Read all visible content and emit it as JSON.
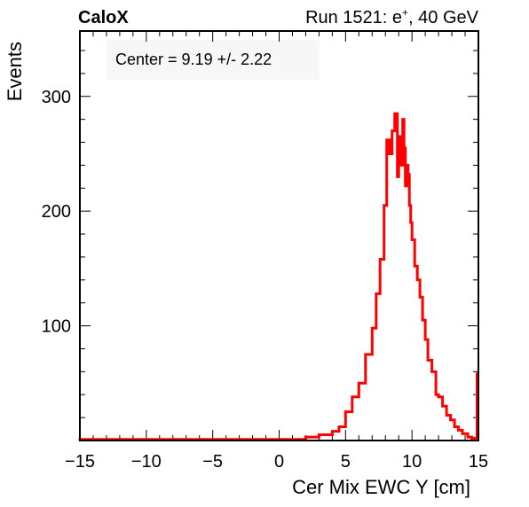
{
  "header": {
    "brand": "CaloX",
    "run_prefix": "Run 1521: e",
    "run_superscript": "+",
    "run_suffix": ", 40 GeV"
  },
  "annotation": "Center = 9.19 +/- 2.22",
  "colors": {
    "line": "#ff0000",
    "axis": "#000000",
    "background": "#ffffff",
    "annotation_box": "#f7f7f7"
  },
  "chart_data": {
    "type": "line",
    "drawstyle": "histogram-step",
    "xlabel": "Cer Mix EWC Y [cm]",
    "ylabel": "Events",
    "xlim": [
      -15,
      15
    ],
    "ylim": [
      0,
      357
    ],
    "x_ticks": [
      {
        "value": -15,
        "label": "−15"
      },
      {
        "value": -10,
        "label": "−10"
      },
      {
        "value": -5,
        "label": "−5"
      },
      {
        "value": 0,
        "label": "0"
      },
      {
        "value": 5,
        "label": "5"
      },
      {
        "value": 10,
        "label": "10"
      },
      {
        "value": 15,
        "label": "15"
      }
    ],
    "y_ticks": [
      {
        "value": 100,
        "label": "100"
      },
      {
        "value": 200,
        "label": "200"
      },
      {
        "value": 300,
        "label": "300"
      }
    ],
    "grid": false,
    "series": [
      {
        "color": "#ff0000",
        "bin_edges_x": [
          -15.0,
          2.0,
          3.0,
          4.0,
          4.5,
          5.0,
          5.5,
          6.0,
          6.5,
          7.0,
          7.3,
          7.6,
          7.9,
          8.1,
          8.3,
          8.5,
          8.7,
          8.9,
          9.0,
          9.1,
          9.2,
          9.3,
          9.4,
          9.5,
          9.6,
          9.7,
          9.8,
          9.9,
          10.0,
          10.2,
          10.4,
          10.6,
          10.8,
          11.0,
          11.2,
          11.5,
          11.8,
          12.0,
          12.3,
          12.6,
          12.9,
          13.2,
          13.5,
          13.8,
          14.2,
          14.5,
          14.9,
          15.0
        ],
        "counts": [
          1,
          3,
          5,
          8,
          12,
          25,
          38,
          50,
          75,
          98,
          128,
          158,
          205,
          262,
          250,
          270,
          285,
          230,
          248,
          265,
          240,
          280,
          255,
          222,
          240,
          232,
          205,
          190,
          175,
          152,
          140,
          125,
          105,
          88,
          70,
          60,
          40,
          38,
          30,
          22,
          18,
          12,
          9,
          6,
          3,
          2,
          58
        ]
      }
    ]
  }
}
